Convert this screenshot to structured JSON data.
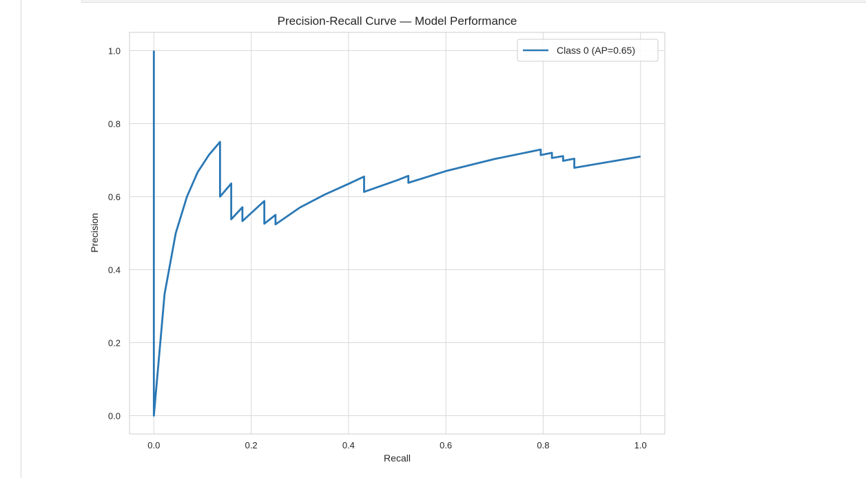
{
  "chart_data": {
    "type": "line",
    "title": "Precision-Recall Curve — Model Performance",
    "xlabel": "Recall",
    "ylabel": "Precision",
    "xlim": [
      -0.05,
      1.05
    ],
    "ylim": [
      -0.05,
      1.05
    ],
    "xticks": [
      0.0,
      0.2,
      0.4,
      0.6,
      0.8,
      1.0
    ],
    "xtick_labels": [
      "0.0",
      "0.2",
      "0.4",
      "0.6",
      "0.8",
      "1.0"
    ],
    "yticks": [
      0.0,
      0.2,
      0.4,
      0.6,
      0.8,
      1.0
    ],
    "ytick_labels": [
      "0.0",
      "0.2",
      "0.4",
      "0.6",
      "0.8",
      "1.0"
    ],
    "grid": true,
    "legend_position": "top-right",
    "series": [
      {
        "name": "Class 0 (AP=0.65)",
        "color": "#2a78b5",
        "x": [
          0.0,
          0.0,
          0.022,
          0.045,
          0.068,
          0.09,
          0.113,
          0.136,
          0.136,
          0.159,
          0.159,
          0.182,
          0.182,
          0.227,
          0.227,
          0.25,
          0.25,
          0.3,
          0.35,
          0.4,
          0.432,
          0.432,
          0.5,
          0.523,
          0.523,
          0.6,
          0.7,
          0.795,
          0.795,
          0.818,
          0.818,
          0.841,
          0.841,
          0.864,
          0.864,
          1.0
        ],
        "y": [
          1.0,
          0.0,
          0.333,
          0.5,
          0.6,
          0.667,
          0.714,
          0.75,
          0.6,
          0.636,
          0.538,
          0.571,
          0.533,
          0.588,
          0.526,
          0.55,
          0.524,
          0.57,
          0.605,
          0.635,
          0.655,
          0.613,
          0.645,
          0.657,
          0.638,
          0.67,
          0.703,
          0.729,
          0.714,
          0.72,
          0.706,
          0.711,
          0.698,
          0.704,
          0.679,
          0.71
        ]
      }
    ]
  },
  "colors": {
    "axes_background": "#ffffff",
    "grid": "#d9d9d9",
    "axes_edge": "#cccccc",
    "text": "#262626"
  }
}
